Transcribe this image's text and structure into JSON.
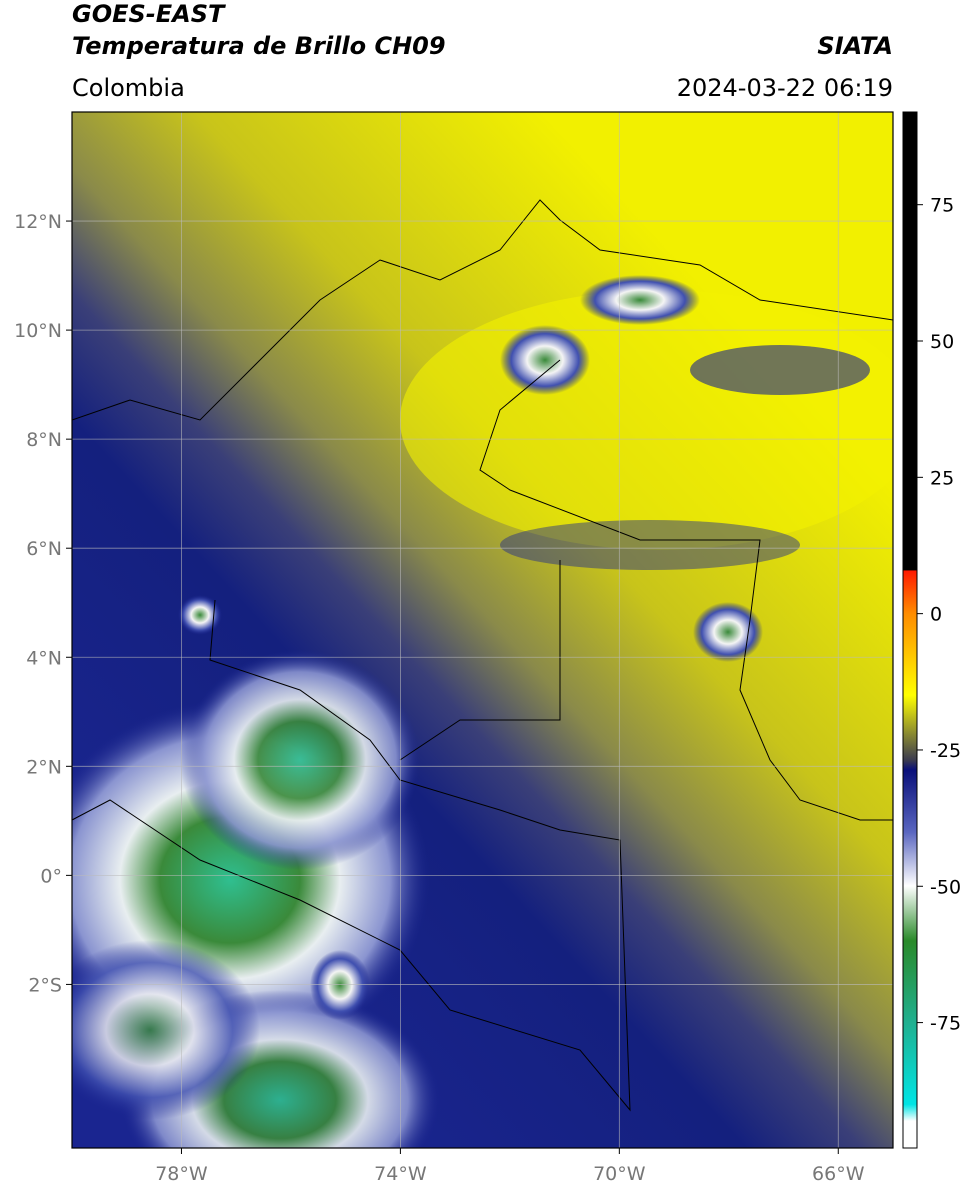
{
  "header": {
    "satellite": "GOES-EAST",
    "product": "Temperatura de Brillo CH09",
    "source": "SIATA",
    "region": "Colombia",
    "datetime": "2024-03-22 06:19"
  },
  "map": {
    "xlim": [
      -80,
      -65
    ],
    "ylim": [
      -5,
      14
    ],
    "grid": true,
    "xticks": [
      {
        "value": -78,
        "label": "78°W"
      },
      {
        "value": -74,
        "label": "74°W"
      },
      {
        "value": -70,
        "label": "70°W"
      },
      {
        "value": -66,
        "label": "66°W"
      }
    ],
    "yticks": [
      {
        "value": 12,
        "label": "12°N"
      },
      {
        "value": 10,
        "label": "10°N"
      },
      {
        "value": 8,
        "label": "8°N"
      },
      {
        "value": 6,
        "label": "6°N"
      },
      {
        "value": 4,
        "label": "4°N"
      },
      {
        "value": 2,
        "label": "2°N"
      },
      {
        "value": 0,
        "label": "0°"
      },
      {
        "value": -2,
        "label": "2°S"
      }
    ]
  },
  "colorbar": {
    "lim": [
      -98,
      92
    ],
    "ticks": [
      75,
      50,
      25,
      0,
      -25,
      -50,
      -75
    ]
  }
}
